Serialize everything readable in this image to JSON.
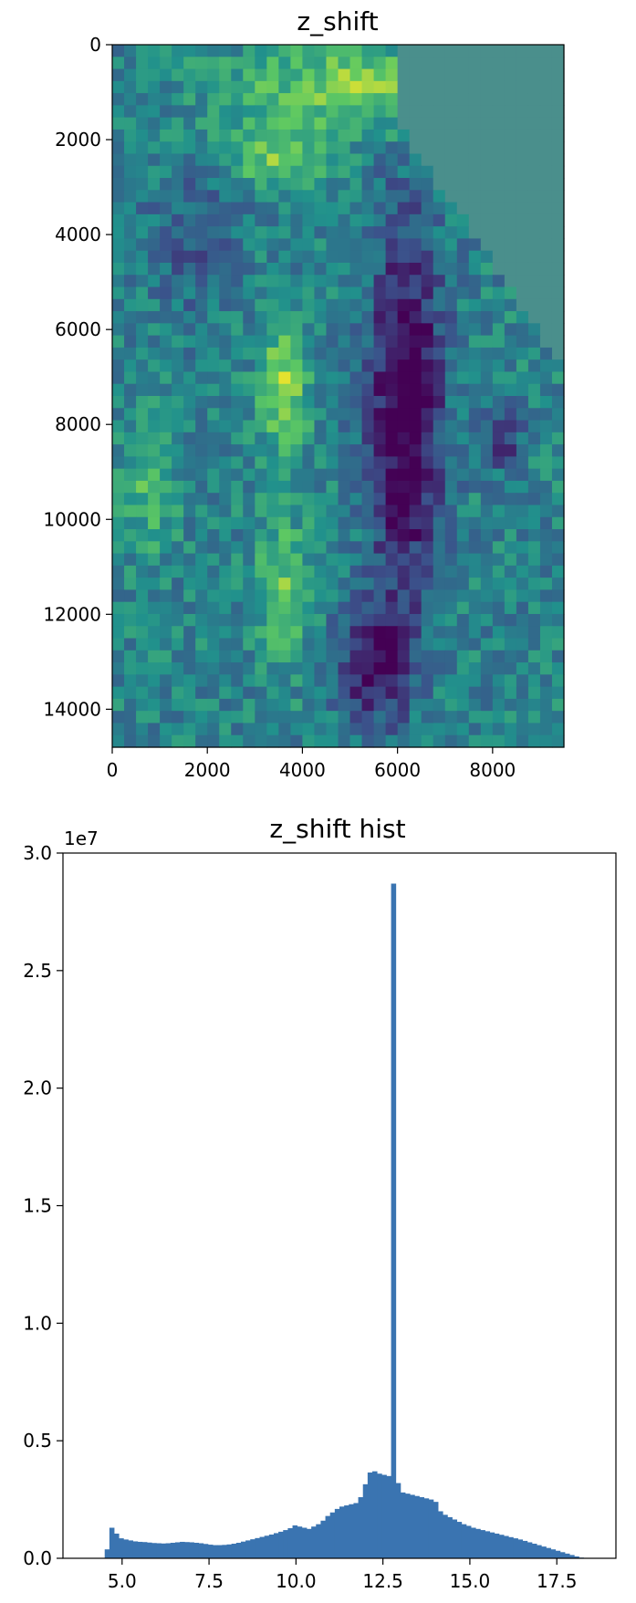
{
  "chart_data": [
    {
      "type": "heatmap",
      "title": "z_shift",
      "xlabel": "",
      "ylabel": "",
      "xlim": [
        0,
        9500
      ],
      "ylim": [
        14800,
        0
      ],
      "xticks": [
        "0",
        "2000",
        "4000",
        "6000",
        "8000"
      ],
      "yticks": [
        "0",
        "2000",
        "4000",
        "6000",
        "8000",
        "10000",
        "12000",
        "14000"
      ],
      "colormap": "viridis",
      "grid": false,
      "colors": {
        "nodata": "#4a8f8c",
        "low": "#440154",
        "mid": "#21918c",
        "high": "#fde725"
      }
    },
    {
      "type": "bar",
      "title": "z_shift hist",
      "xlabel": "",
      "ylabel": "",
      "xlim": [
        3.3,
        19.2
      ],
      "ylim": [
        0,
        30000000
      ],
      "y_offset_label": "1e7",
      "xticks": [
        "5.0",
        "7.5",
        "10.0",
        "12.5",
        "15.0",
        "17.5"
      ],
      "yticks": [
        "0.0",
        "0.5",
        "1.0",
        "1.5",
        "2.0",
        "2.5",
        "3.0"
      ],
      "bin_start": 4.5,
      "bin_width": 0.135,
      "counts": [
        380000,
        1300000,
        1050000,
        850000,
        800000,
        760000,
        720000,
        700000,
        690000,
        670000,
        650000,
        640000,
        630000,
        640000,
        660000,
        680000,
        700000,
        690000,
        680000,
        660000,
        640000,
        610000,
        580000,
        560000,
        560000,
        570000,
        590000,
        620000,
        660000,
        710000,
        760000,
        810000,
        860000,
        910000,
        960000,
        1010000,
        1070000,
        1130000,
        1200000,
        1280000,
        1400000,
        1350000,
        1300000,
        1250000,
        1350000,
        1450000,
        1600000,
        1800000,
        1950000,
        2100000,
        2200000,
        2250000,
        2300000,
        2350000,
        2600000,
        3150000,
        3650000,
        3700000,
        3600000,
        3550000,
        3500000,
        28700000,
        3200000,
        2800000,
        2750000,
        2700000,
        2650000,
        2600000,
        2550000,
        2500000,
        2400000,
        2000000,
        1850000,
        1750000,
        1650000,
        1550000,
        1450000,
        1380000,
        1300000,
        1250000,
        1200000,
        1150000,
        1100000,
        1050000,
        1000000,
        950000,
        900000,
        850000,
        800000,
        740000,
        680000,
        620000,
        560000,
        500000,
        440000,
        380000,
        320000,
        260000,
        200000,
        140000,
        80000,
        30000
      ],
      "grid": false,
      "colors": {
        "bar": "#3a74b1"
      }
    }
  ]
}
